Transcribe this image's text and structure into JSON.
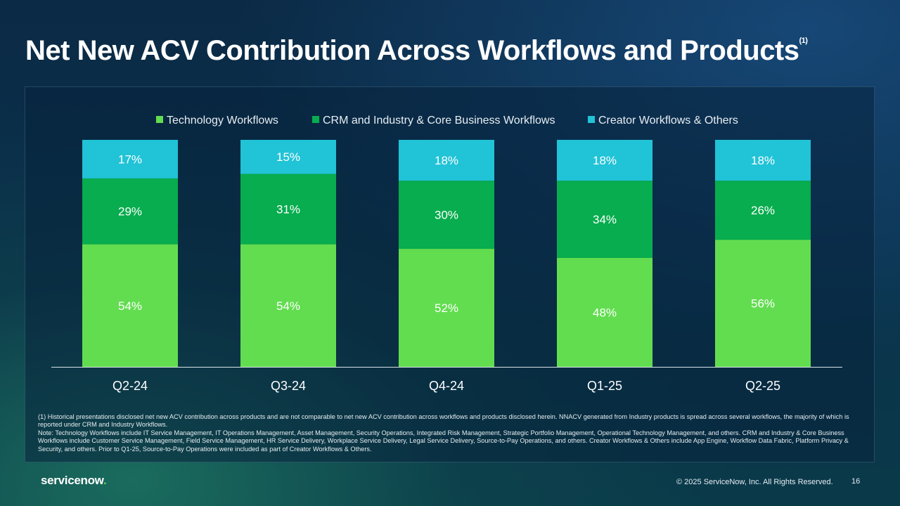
{
  "title": "Net New ACV Contribution Across Workflows and Products",
  "title_footnote_marker": "(1)",
  "colors": {
    "technology": "#62dd50",
    "crm": "#07ad4e",
    "creator": "#21c3d6",
    "axis": "#d9e4ea"
  },
  "chart_data": {
    "type": "bar",
    "stacked": true,
    "categories": [
      "Q2-24",
      "Q3-24",
      "Q4-24",
      "Q1-25",
      "Q2-25"
    ],
    "series": [
      {
        "name": "Technology Workflows",
        "values": [
          54,
          54,
          52,
          48,
          56
        ],
        "labels": [
          "54%",
          "54%",
          "52%",
          "48%",
          "56%"
        ]
      },
      {
        "name": "CRM and Industry & Core Business Workflows",
        "values": [
          29,
          31,
          30,
          34,
          26
        ],
        "labels": [
          "29%",
          "31%",
          "30%",
          "34%",
          "26%"
        ]
      },
      {
        "name": "Creator Workflows & Others",
        "values": [
          17,
          15,
          18,
          18,
          18
        ],
        "labels": [
          "17%",
          "15%",
          "18%",
          "18%",
          "18%"
        ]
      }
    ],
    "ylim": [
      0,
      100
    ],
    "unit": "%",
    "legend": "top-center"
  },
  "footnotes": [
    "(1) Historical presentations disclosed net new ACV contribution across products and are not comparable to net new ACV contribution across workflows and products disclosed herein. NNACV generated from Industry products is spread across several workflows, the majority of which is reported under CRM and Industry Workflows.",
    "Note: Technology Workflows include IT Service Management, IT Operations Management, Asset Management, Security Operations, Integrated Risk Management, Strategic Portfolio Management, Operational Technology Management, and others. CRM and Industry & Core Business Workflows include Customer Service Management, Field Service Management, HR Service Delivery, Workplace Service Delivery, Legal Service Delivery, Source-to-Pay Operations, and others. Creator Workflows & Others include App Engine, Workflow Data Fabric, Platform Privacy & Security, and others. Prior to Q1-25, Source-to-Pay Operations were included as part of Creator Workflows & Others."
  ],
  "footer": {
    "logo_text": "servicenow",
    "logo_suffix": ".",
    "copyright": "© 2025 ServiceNow, Inc. All Rights Reserved.",
    "page_number": "16"
  }
}
